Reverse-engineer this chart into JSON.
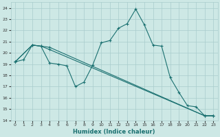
{
  "xlabel": "Humidex (Indice chaleur)",
  "xlim": [
    -0.5,
    23.5
  ],
  "ylim": [
    14,
    24.5
  ],
  "yticks": [
    14,
    15,
    16,
    17,
    18,
    19,
    20,
    21,
    22,
    23,
    24
  ],
  "xticks": [
    0,
    1,
    2,
    3,
    4,
    5,
    6,
    7,
    8,
    9,
    10,
    11,
    12,
    13,
    14,
    15,
    16,
    17,
    18,
    19,
    20,
    21,
    22,
    23
  ],
  "bg_color": "#cde8e5",
  "line_color": "#1a7070",
  "grid_color": "#a8cccc",
  "lines": [
    {
      "x": [
        0,
        1,
        2,
        3,
        4,
        5,
        6,
        7,
        8,
        9,
        10,
        11,
        12,
        13,
        14,
        15,
        16,
        17,
        18,
        19,
        20,
        21,
        22,
        23
      ],
      "y": [
        19.2,
        19.4,
        20.7,
        20.6,
        19.1,
        19.0,
        18.85,
        17.0,
        17.4,
        18.9,
        20.9,
        21.1,
        22.2,
        22.6,
        23.9,
        22.5,
        20.7,
        20.6,
        17.8,
        16.5,
        15.3,
        15.2,
        14.4,
        14.4
      ]
    },
    {
      "x": [
        0,
        2,
        3,
        4,
        22,
        23
      ],
      "y": [
        19.2,
        20.7,
        20.6,
        20.5,
        14.4,
        14.4
      ]
    },
    {
      "x": [
        0,
        2,
        3,
        4,
        22,
        23
      ],
      "y": [
        19.2,
        20.7,
        20.6,
        20.3,
        14.4,
        14.4
      ]
    }
  ]
}
